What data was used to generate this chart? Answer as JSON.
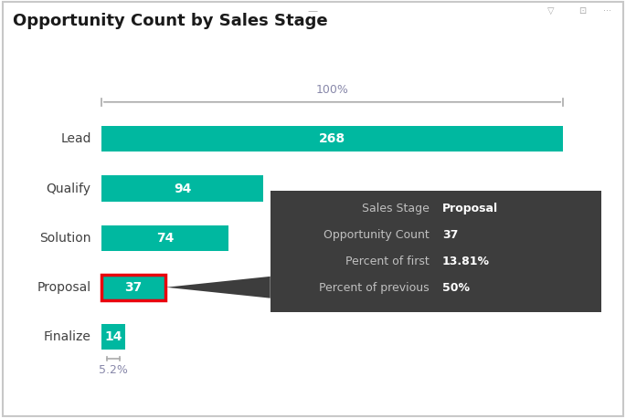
{
  "title": "Opportunity Count by Sales Stage",
  "categories": [
    "Lead",
    "Qualify",
    "Solution",
    "Proposal",
    "Finalize"
  ],
  "values": [
    268,
    94,
    74,
    37,
    14
  ],
  "bar_color": "#00B8A0",
  "highlight_index": 3,
  "highlight_border_color": "#E8000D",
  "label_color": "#FFFFFF",
  "category_label_color": "#404040",
  "background_color": "#FFFFFF",
  "max_value": 268,
  "bar_height": 0.52,
  "percent_label": "100%",
  "bottom_label": "5.2%",
  "tooltip": {
    "bg_color": "#3D3D3D",
    "text_color": "#C0C0C0",
    "bold_color": "#FFFFFF",
    "rows": [
      {
        "label": "Sales Stage",
        "value": "Proposal"
      },
      {
        "label": "Opportunity Count",
        "value": "37"
      },
      {
        "label": "Percent of first",
        "value": "13.81%"
      },
      {
        "label": "Percent of previous",
        "value": "50%"
      }
    ]
  },
  "fig_bg_color": "#FFFFFF",
  "border_color": "#C8C8C8",
  "title_fontsize": 13,
  "category_fontsize": 10,
  "value_fontsize": 10
}
